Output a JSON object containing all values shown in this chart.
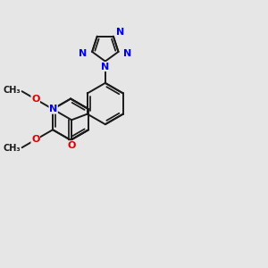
{
  "bg_color": "#e6e6e6",
  "bond_color": "#1a1a1a",
  "bond_width": 1.4,
  "atom_colors": {
    "C": "#1a1a1a",
    "N": "#0000ee",
    "O": "#dd0000",
    "H": "#1a1a1a"
  },
  "font_size": 7.5,
  "title": ""
}
